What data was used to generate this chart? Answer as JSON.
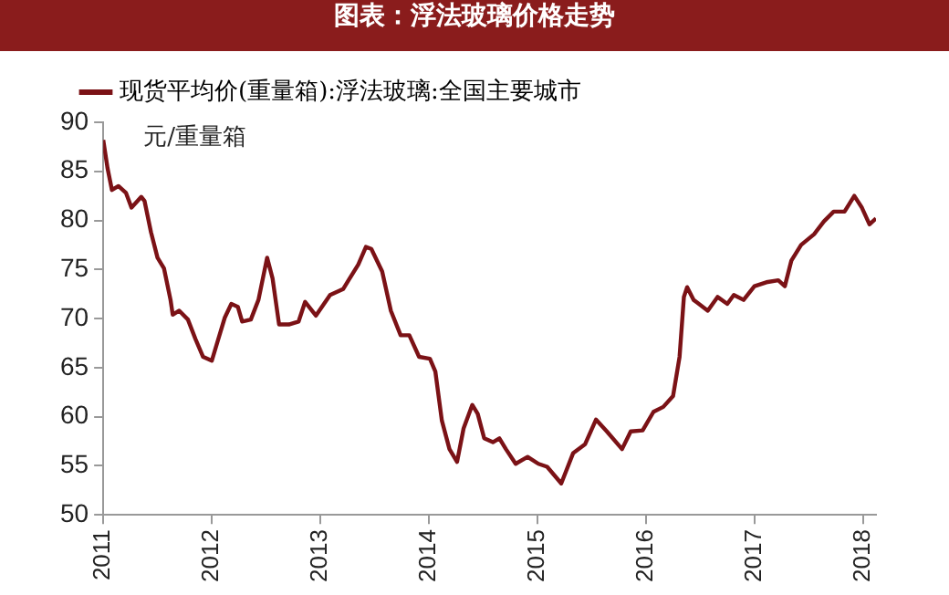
{
  "chart_data": {
    "type": "line",
    "title": "图表：浮法玻璃价格走势",
    "ylabel": "元/重量箱",
    "legend": "top",
    "grid": false,
    "marker": "none",
    "line_style": "solid",
    "xlim": [
      2011,
      2018.12
    ],
    "xticks": [
      2011,
      2012,
      2013,
      2014,
      2015,
      2016,
      2017,
      2018
    ],
    "ylim": [
      50,
      90
    ],
    "yticks": [
      50,
      55,
      60,
      65,
      70,
      75,
      80,
      85,
      90
    ],
    "series": [
      {
        "name": "现货平均价(重量箱):浮法玻璃:全国主要城市",
        "color": "#7b1216",
        "x": [
          2011.0,
          2011.04,
          2011.08,
          2011.14,
          2011.21,
          2011.26,
          2011.35,
          2011.38,
          2011.44,
          2011.5,
          2011.56,
          2011.62,
          2011.64,
          2011.7,
          2011.78,
          2011.85,
          2011.92,
          2012.0,
          2012.06,
          2012.12,
          2012.18,
          2012.24,
          2012.28,
          2012.36,
          2012.43,
          2012.51,
          2012.56,
          2012.62,
          2012.71,
          2012.8,
          2012.86,
          2012.96,
          2013.09,
          2013.21,
          2013.26,
          2013.35,
          2013.42,
          2013.47,
          2013.57,
          2013.65,
          2013.74,
          2013.82,
          2013.91,
          2014.01,
          2014.06,
          2014.12,
          2014.19,
          2014.26,
          2014.32,
          2014.4,
          2014.45,
          2014.51,
          2014.59,
          2014.65,
          2014.71,
          2014.8,
          2014.91,
          2015.01,
          2015.09,
          2015.22,
          2015.33,
          2015.44,
          2015.54,
          2015.64,
          2015.78,
          2015.86,
          2015.97,
          2016.07,
          2016.16,
          2016.25,
          2016.31,
          2016.35,
          2016.38,
          2016.44,
          2016.57,
          2016.66,
          2016.75,
          2016.81,
          2016.9,
          2017.0,
          2017.11,
          2017.22,
          2017.28,
          2017.34,
          2017.43,
          2017.55,
          2017.64,
          2017.73,
          2017.83,
          2017.92,
          2017.99,
          2018.06,
          2018.12
        ],
        "values": [
          88.2,
          85.3,
          83.1,
          83.5,
          82.8,
          81.3,
          82.4,
          82.0,
          78.8,
          76.2,
          75.1,
          71.9,
          70.4,
          70.8,
          69.9,
          67.9,
          66.1,
          65.7,
          67.9,
          70.1,
          71.5,
          71.2,
          69.7,
          69.9,
          71.9,
          76.2,
          74.1,
          69.4,
          69.4,
          69.7,
          71.7,
          70.3,
          72.4,
          73.0,
          73.9,
          75.5,
          77.3,
          77.1,
          74.8,
          70.8,
          68.3,
          68.3,
          66.1,
          65.9,
          64.6,
          59.6,
          56.7,
          55.4,
          58.8,
          61.2,
          60.3,
          57.8,
          57.4,
          57.8,
          56.7,
          55.2,
          55.9,
          55.2,
          54.9,
          53.2,
          56.3,
          57.2,
          59.7,
          58.5,
          56.7,
          58.5,
          58.6,
          60.5,
          61.0,
          62.1,
          66.1,
          72.2,
          73.2,
          71.9,
          70.8,
          72.2,
          71.5,
          72.4,
          71.9,
          73.3,
          73.7,
          73.9,
          73.3,
          75.9,
          77.5,
          78.6,
          79.9,
          80.9,
          80.9,
          82.5,
          81.3,
          79.6,
          80.2
        ]
      }
    ]
  }
}
